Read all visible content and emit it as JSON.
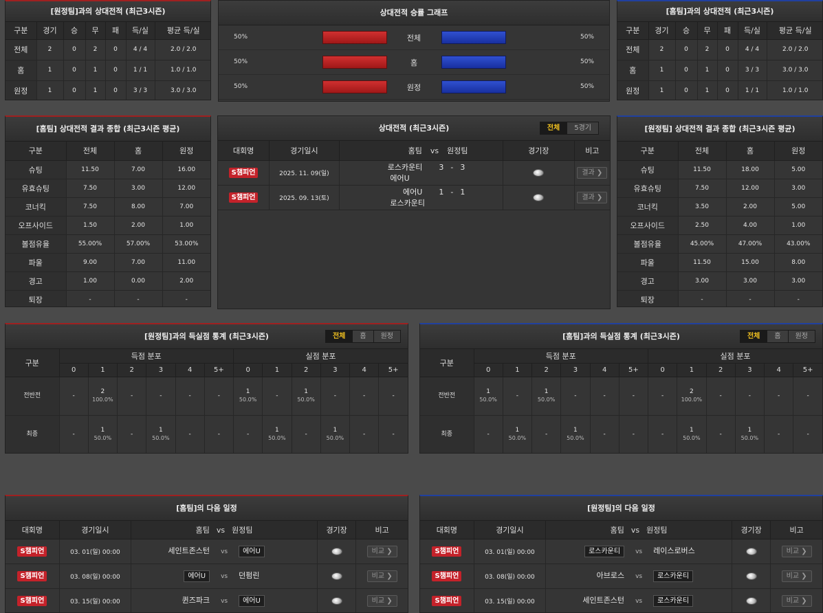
{
  "h2h_away": {
    "title": "[원정팀]과의 상대전적 (최근3시즌)",
    "headers": [
      "구분",
      "경기",
      "승",
      "무",
      "패",
      "득/실",
      "평균 득/실"
    ],
    "rows": [
      [
        "전체",
        "2",
        "0",
        "2",
        "0",
        "4 / 4",
        "2.0 / 2.0"
      ],
      [
        "홈",
        "1",
        "0",
        "1",
        "0",
        "1 / 1",
        "1.0 / 1.0"
      ],
      [
        "원정",
        "1",
        "0",
        "1",
        "0",
        "3 / 3",
        "3.0 / 3.0"
      ]
    ]
  },
  "graph": {
    "title": "상대전적 승률 그래프",
    "rows": [
      {
        "label": "전체",
        "left": "50%",
        "right": "50%",
        "left_pct": 50,
        "right_pct": 50
      },
      {
        "label": "홈",
        "left": "50%",
        "right": "50%",
        "left_pct": 50,
        "right_pct": 50
      },
      {
        "label": "원정",
        "left": "50%",
        "right": "50%",
        "left_pct": 50,
        "right_pct": 50
      }
    ]
  },
  "h2h_home": {
    "title": "[홈팀]과의 상대전적 (최근3시즌)",
    "headers": [
      "구분",
      "경기",
      "승",
      "무",
      "패",
      "득/실",
      "평균 득/실"
    ],
    "rows": [
      [
        "전체",
        "2",
        "0",
        "2",
        "0",
        "4 / 4",
        "2.0 / 2.0"
      ],
      [
        "홈",
        "1",
        "0",
        "1",
        "0",
        "3 / 3",
        "3.0 / 3.0"
      ],
      [
        "원정",
        "1",
        "0",
        "1",
        "0",
        "1 / 1",
        "1.0 / 1.0"
      ]
    ]
  },
  "summary_home": {
    "title": "[홈팀] 상대전적 결과 종합 (최근3시즌 평균)",
    "headers": [
      "구분",
      "전체",
      "홈",
      "원정"
    ],
    "rows": [
      [
        "슈팅",
        "11.50",
        "7.00",
        "16.00"
      ],
      [
        "유효슈팅",
        "7.50",
        "3.00",
        "12.00"
      ],
      [
        "코너킥",
        "7.50",
        "8.00",
        "7.00"
      ],
      [
        "오프사이드",
        "1.50",
        "2.00",
        "1.00"
      ],
      [
        "볼점유율",
        "55.00%",
        "57.00%",
        "53.00%"
      ],
      [
        "파울",
        "9.00",
        "7.00",
        "11.00"
      ],
      [
        "경고",
        "1.00",
        "0.00",
        "2.00"
      ],
      [
        "퇴장",
        "-",
        "-",
        "-"
      ]
    ]
  },
  "recent": {
    "title": "상대전적 (최근3시즌)",
    "tabs": [
      "전체",
      "5경기"
    ],
    "headers": {
      "league": "대회명",
      "date": "경기일시",
      "home": "홈팀",
      "vs": "vs",
      "away": "원정팀",
      "venue": "경기장",
      "note": "비고"
    },
    "rows": [
      {
        "league": "S챔피언",
        "date": "2025. 11. 09(일)",
        "home": "로스카운티",
        "score_h": "3",
        "dash": "-",
        "score_a": "3",
        "away": "에어U",
        "btn": "결과 ❯"
      },
      {
        "league": "S챔피언",
        "date": "2025. 09. 13(토)",
        "home": "에어U",
        "score_h": "1",
        "dash": "-",
        "score_a": "1",
        "away": "로스카운티",
        "btn": "결과 ❯"
      }
    ]
  },
  "summary_away": {
    "title": "[원정팀] 상대전적 결과 종합 (최근3시즌 평균)",
    "headers": [
      "구분",
      "전체",
      "홈",
      "원정"
    ],
    "rows": [
      [
        "슈팅",
        "11.50",
        "18.00",
        "5.00"
      ],
      [
        "유효슈팅",
        "7.50",
        "12.00",
        "3.00"
      ],
      [
        "코너킥",
        "3.50",
        "2.00",
        "5.00"
      ],
      [
        "오프사이드",
        "2.50",
        "4.00",
        "1.00"
      ],
      [
        "볼점유율",
        "45.00%",
        "47.00%",
        "43.00%"
      ],
      [
        "파울",
        "11.50",
        "15.00",
        "8.00"
      ],
      [
        "경고",
        "3.00",
        "3.00",
        "3.00"
      ],
      [
        "퇴장",
        "-",
        "-",
        "-"
      ]
    ]
  },
  "goals_away": {
    "title": "[원정팀]과의 득실점 통계 (최근3시즌)",
    "tabs": [
      "전체",
      "홈",
      "원정"
    ],
    "h_label": "구분",
    "h_scored": "득점 분포",
    "h_conceded": "실점 분포",
    "cols": [
      "0",
      "1",
      "2",
      "3",
      "4",
      "5+"
    ],
    "rows": [
      {
        "label": "전반전",
        "cells": [
          [
            "-",
            ""
          ],
          [
            "2",
            "100.0%"
          ],
          [
            "-",
            ""
          ],
          [
            "-",
            ""
          ],
          [
            "-",
            ""
          ],
          [
            "-",
            ""
          ],
          [
            "1",
            "50.0%"
          ],
          [
            "-",
            ""
          ],
          [
            "1",
            "50.0%"
          ],
          [
            "-",
            ""
          ],
          [
            "-",
            ""
          ],
          [
            "-",
            ""
          ]
        ]
      },
      {
        "label": "최종",
        "cells": [
          [
            "-",
            ""
          ],
          [
            "1",
            "50.0%"
          ],
          [
            "-",
            ""
          ],
          [
            "1",
            "50.0%"
          ],
          [
            "-",
            ""
          ],
          [
            "-",
            ""
          ],
          [
            "-",
            ""
          ],
          [
            "1",
            "50.0%"
          ],
          [
            "-",
            ""
          ],
          [
            "1",
            "50.0%"
          ],
          [
            "-",
            ""
          ],
          [
            "-",
            ""
          ]
        ]
      }
    ]
  },
  "goals_home": {
    "title": "[홈팀]과의 득실점 통계 (최근3시즌)",
    "tabs": [
      "전체",
      "홈",
      "원정"
    ],
    "h_label": "구분",
    "h_scored": "득점 분포",
    "h_conceded": "실점 분포",
    "cols": [
      "0",
      "1",
      "2",
      "3",
      "4",
      "5+"
    ],
    "rows": [
      {
        "label": "전반전",
        "cells": [
          [
            "1",
            "50.0%"
          ],
          [
            "-",
            ""
          ],
          [
            "1",
            "50.0%"
          ],
          [
            "-",
            ""
          ],
          [
            "-",
            ""
          ],
          [
            "-",
            ""
          ],
          [
            "-",
            ""
          ],
          [
            "2",
            "100.0%"
          ],
          [
            "-",
            ""
          ],
          [
            "-",
            ""
          ],
          [
            "-",
            ""
          ],
          [
            "-",
            ""
          ]
        ]
      },
      {
        "label": "최종",
        "cells": [
          [
            "-",
            ""
          ],
          [
            "1",
            "50.0%"
          ],
          [
            "-",
            ""
          ],
          [
            "1",
            "50.0%"
          ],
          [
            "-",
            ""
          ],
          [
            "-",
            ""
          ],
          [
            "-",
            ""
          ],
          [
            "1",
            "50.0%"
          ],
          [
            "-",
            ""
          ],
          [
            "1",
            "50.0%"
          ],
          [
            "-",
            ""
          ],
          [
            "-",
            ""
          ]
        ]
      }
    ]
  },
  "next_home": {
    "title": "[홈팀]의 다음 일정",
    "headers": {
      "league": "대회명",
      "date": "경기일시",
      "home": "홈팀",
      "vs": "vs",
      "away": "원정팀",
      "venue": "경기장",
      "note": "비고"
    },
    "rows": [
      {
        "league": "S챔피언",
        "date": "03. 01(일) 00:00",
        "home": "세인트존스턴",
        "away": "에어U",
        "hl": "away",
        "vs": "vs",
        "btn": "비교 ❯"
      },
      {
        "league": "S챔피언",
        "date": "03. 08(일) 00:00",
        "home": "에어U",
        "away": "던펌린",
        "hl": "home",
        "vs": "vs",
        "btn": "비교 ❯"
      },
      {
        "league": "S챔피언",
        "date": "03. 15(일) 00:00",
        "home": "퀸즈파크",
        "away": "에어U",
        "hl": "away",
        "vs": "vs",
        "btn": "비교 ❯"
      }
    ]
  },
  "next_away": {
    "title": "[원정팀]의 다음 일정",
    "headers": {
      "league": "대회명",
      "date": "경기일시",
      "home": "홈팀",
      "vs": "vs",
      "away": "원정팀",
      "venue": "경기장",
      "note": "비고"
    },
    "rows": [
      {
        "league": "S챔피언",
        "date": "03. 01(일) 00:00",
        "home": "로스카운티",
        "away": "레이스로버스",
        "hl": "home",
        "vs": "vs",
        "btn": "비교 ❯"
      },
      {
        "league": "S챔피언",
        "date": "03. 08(일) 00:00",
        "home": "아브로스",
        "away": "로스카운티",
        "hl": "away",
        "vs": "vs",
        "btn": "비교 ❯"
      },
      {
        "league": "S챔피언",
        "date": "03. 15(일) 00:00",
        "home": "세인트존스턴",
        "away": "로스카운티",
        "hl": "away",
        "vs": "vs",
        "btn": "비교 ❯"
      }
    ]
  }
}
